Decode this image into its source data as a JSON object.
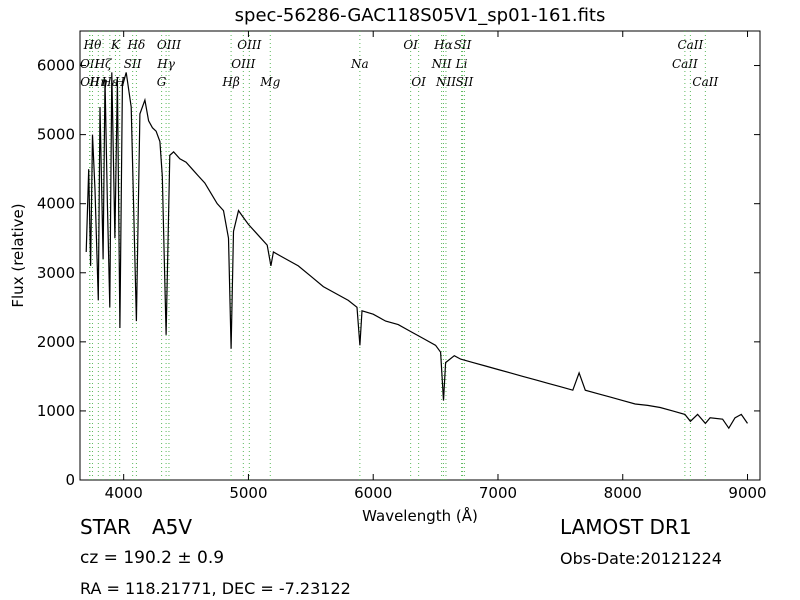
{
  "title": "spec-56286-GAC118S05V1_sp01-161.fits",
  "object_class": "STAR",
  "subclass": "A5V",
  "cz": "cz = 190.2 ± 0.9",
  "coords": "RA = 118.21771, DEC = -7.23122",
  "survey": "LAMOST DR1",
  "obs_date": "Obs-Date:20121224",
  "chart_data": {
    "type": "line",
    "title": "spec-56286-GAC118S05V1_sp01-161.fits",
    "xlabel": "Wavelength (Å)",
    "ylabel": "Flux (relative)",
    "xlim": [
      3650,
      9100
    ],
    "ylim": [
      0,
      6500
    ],
    "xticks": [
      4000,
      5000,
      6000,
      7000,
      8000,
      9000
    ],
    "yticks": [
      0,
      1000,
      2000,
      3000,
      4000,
      5000,
      6000
    ],
    "grid": false,
    "line_color": "#000000",
    "marker_color": "#5cb85c",
    "series": [
      {
        "x": [
          3700,
          3720,
          3735,
          3750,
          3770,
          3797,
          3810,
          3835,
          3850,
          3870,
          3889,
          3905,
          3930,
          3950,
          3970,
          3990,
          4020,
          4060,
          4102,
          4130,
          4170,
          4200,
          4230,
          4260,
          4290,
          4310,
          4340,
          4370,
          4400,
          4450,
          4500,
          4550,
          4600,
          4650,
          4700,
          4750,
          4800,
          4840,
          4861,
          4880,
          4920,
          4960,
          5000,
          5050,
          5100,
          5150,
          5180,
          5200,
          5250,
          5300,
          5400,
          5500,
          5600,
          5700,
          5800,
          5870,
          5893,
          5910,
          6000,
          6100,
          6200,
          6300,
          6400,
          6500,
          6540,
          6563,
          6580,
          6650,
          6700,
          6800,
          6900,
          7000,
          7100,
          7200,
          7300,
          7400,
          7500,
          7600,
          7650,
          7700,
          7800,
          7900,
          8000,
          8100,
          8200,
          8300,
          8400,
          8498,
          8542,
          8600,
          8662,
          8700,
          8800,
          8850,
          8900,
          8950,
          9000
        ],
        "y": [
          3300,
          4500,
          3100,
          5000,
          4200,
          2600,
          5400,
          3200,
          5800,
          4000,
          2500,
          5900,
          3500,
          5800,
          2200,
          5700,
          5900,
          5400,
          2300,
          5300,
          5500,
          5200,
          5100,
          5050,
          4900,
          4400,
          2100,
          4700,
          4750,
          4650,
          4600,
          4500,
          4400,
          4300,
          4150,
          4000,
          3900,
          3500,
          1900,
          3600,
          3900,
          3800,
          3700,
          3600,
          3500,
          3400,
          3100,
          3300,
          3250,
          3200,
          3100,
          2950,
          2800,
          2700,
          2600,
          2500,
          1950,
          2450,
          2400,
          2300,
          2250,
          2150,
          2050,
          1950,
          1850,
          1150,
          1700,
          1800,
          1750,
          1700,
          1650,
          1600,
          1550,
          1500,
          1450,
          1400,
          1350,
          1300,
          1550,
          1300,
          1250,
          1200,
          1150,
          1100,
          1080,
          1050,
          1000,
          950,
          850,
          950,
          820,
          900,
          880,
          750,
          900,
          950,
          820
        ]
      }
    ],
    "line_markers": [
      {
        "x": 3727,
        "label": "OII",
        "row": 1
      },
      {
        "x": 3729,
        "label": "OII",
        "row": 2
      },
      {
        "x": 3750,
        "label": "Hθ",
        "row": 0
      },
      {
        "x": 3797,
        "label": "Hη",
        "row": 2
      },
      {
        "x": 3835,
        "label": "Hζ",
        "row": 1
      },
      {
        "x": 3889,
        "label": "Hε",
        "row": 2
      },
      {
        "x": 3934,
        "label": "K",
        "row": 0
      },
      {
        "x": 3968,
        "label": "H",
        "row": 2
      },
      {
        "x": 4072,
        "label": "SII",
        "row": 1
      },
      {
        "x": 4102,
        "label": "Hδ",
        "row": 0
      },
      {
        "x": 4304,
        "label": "G",
        "row": 2
      },
      {
        "x": 4340,
        "label": "Hγ",
        "row": 1
      },
      {
        "x": 4363,
        "label": "OIII",
        "row": 0
      },
      {
        "x": 4861,
        "label": "Hβ",
        "row": 2
      },
      {
        "x": 4959,
        "label": "OIII",
        "row": 1
      },
      {
        "x": 5007,
        "label": "OIII",
        "row": 0
      },
      {
        "x": 5175,
        "label": "Mg",
        "row": 2
      },
      {
        "x": 5893,
        "label": "Na",
        "row": 1
      },
      {
        "x": 6300,
        "label": "OI",
        "row": 0
      },
      {
        "x": 6364,
        "label": "OI",
        "row": 2
      },
      {
        "x": 6548,
        "label": "NII",
        "row": 1
      },
      {
        "x": 6563,
        "label": "Hα",
        "row": 0
      },
      {
        "x": 6583,
        "label": "NII",
        "row": 2
      },
      {
        "x": 6716,
        "label": "SII",
        "row": 0
      },
      {
        "x": 6708,
        "label": "Li",
        "row": 1
      },
      {
        "x": 6731,
        "label": "SII",
        "row": 2
      },
      {
        "x": 8498,
        "label": "CaII",
        "row": 1
      },
      {
        "x": 8542,
        "label": "CaII",
        "row": 0
      },
      {
        "x": 8662,
        "label": "CaII",
        "row": 2
      }
    ]
  }
}
